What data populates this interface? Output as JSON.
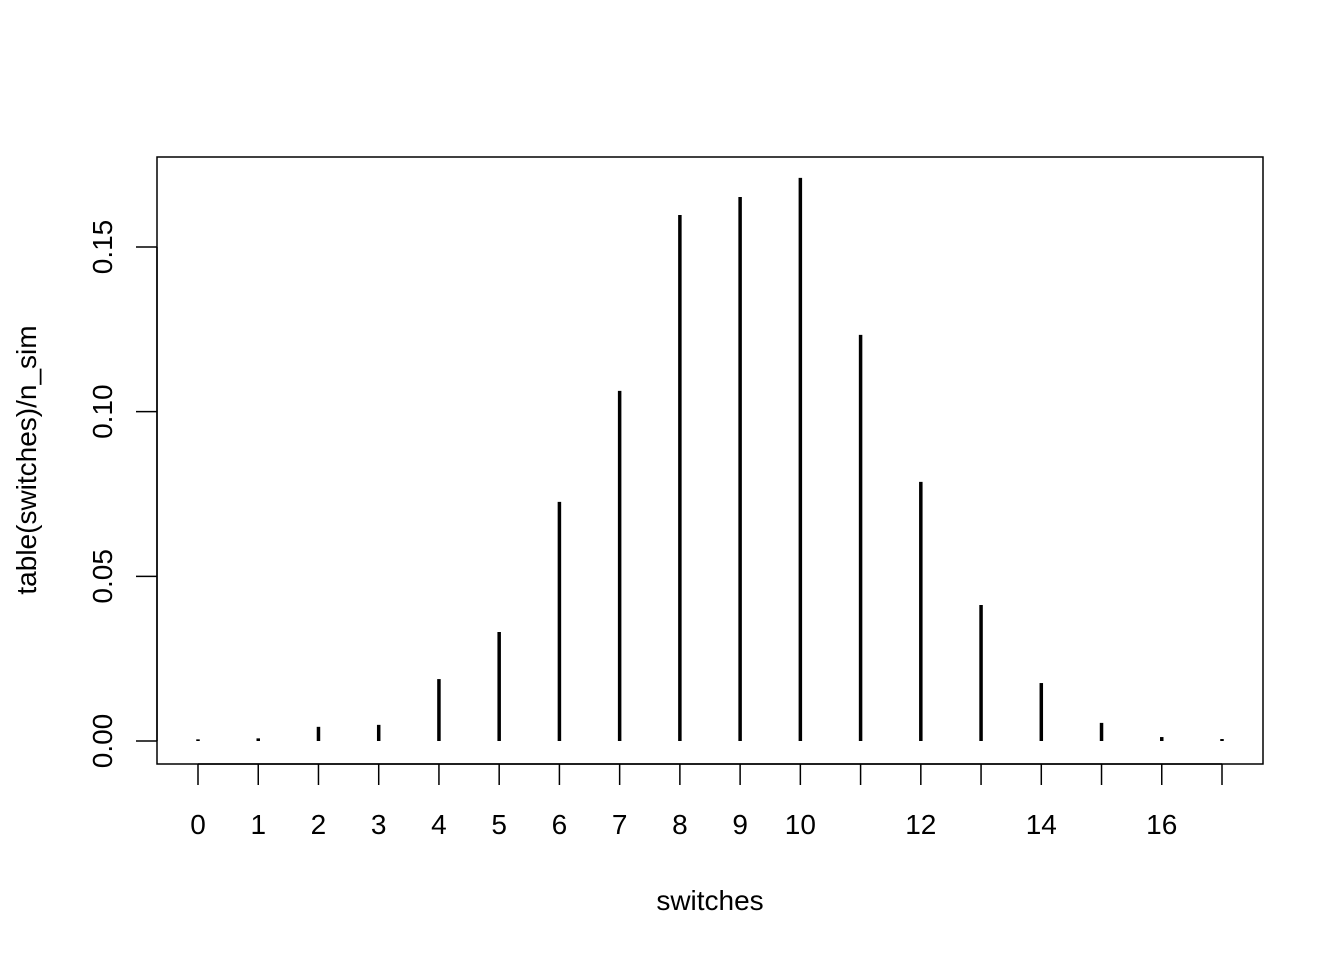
{
  "chart_data": {
    "type": "bar",
    "style": "histogram-like vertical lines (R type='h')",
    "title": "",
    "xlabel": "switches",
    "ylabel": "table(switches)/n_sim",
    "categories": [
      0,
      1,
      2,
      3,
      4,
      5,
      6,
      7,
      8,
      9,
      10,
      11,
      12,
      13,
      14,
      15,
      16,
      17
    ],
    "values": [
      0.0005,
      0.0008,
      0.0043,
      0.0049,
      0.0188,
      0.0331,
      0.0726,
      0.1063,
      0.1597,
      0.1652,
      0.171,
      0.1233,
      0.0787,
      0.0413,
      0.0176,
      0.0055,
      0.0012,
      0.0006
    ],
    "x_tick_labels": [
      "0",
      "1",
      "2",
      "3",
      "4",
      "5",
      "6",
      "7",
      "8",
      "9",
      "10",
      "12",
      "14",
      "16"
    ],
    "x_tick_positions": [
      0,
      1,
      2,
      3,
      4,
      5,
      6,
      7,
      8,
      9,
      10,
      11,
      12,
      13,
      14,
      15,
      16,
      17
    ],
    "y_ticks": [
      0,
      0.05,
      0.1,
      0.15
    ],
    "y_tick_labels": [
      "0.00",
      "0.05",
      "0.10",
      "0.15"
    ],
    "xlim": [
      -0.68,
      17.68
    ],
    "ylim": [
      -0.0068,
      0.1778
    ],
    "grid": false,
    "color": "#000000"
  }
}
